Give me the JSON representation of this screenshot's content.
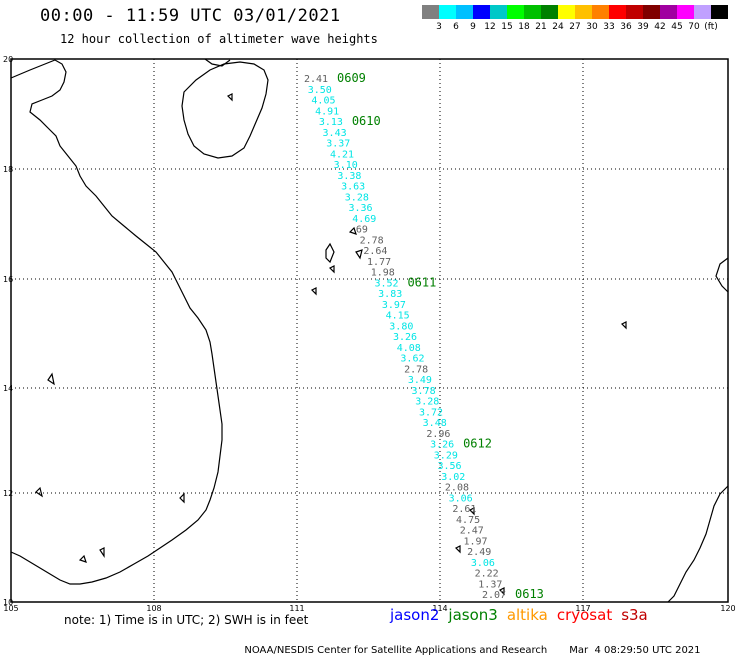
{
  "title": "00:00 - 11:59 UTC 03/01/2021",
  "subtitle": "12 hour collection of altimeter wave heights",
  "legend": {
    "colors": [
      "#808080",
      "#00ffff",
      "#00c0ff",
      "#0000ff",
      "#00c8c8",
      "#00ff00",
      "#00c000",
      "#008000",
      "#ffff00",
      "#ffc000",
      "#ff8000",
      "#ff0000",
      "#c00000",
      "#800000",
      "#a000a0",
      "#ff00ff",
      "#c0a0ff",
      "#000000"
    ],
    "labels": [
      "3",
      "6",
      "9",
      "12",
      "15",
      "18",
      "21",
      "24",
      "27",
      "30",
      "33",
      "36",
      "39",
      "42",
      "45",
      "70",
      "(ft)"
    ]
  },
  "axes": {
    "lat_labels": [
      "20",
      "18",
      "16",
      "14",
      "12",
      "10"
    ],
    "lon_labels": [
      "105",
      "108",
      "111",
      "114",
      "117",
      "120"
    ]
  },
  "track_colors": {
    "cyan": "#00e5e5",
    "gray": "#606060",
    "time": "#008000"
  },
  "points": [
    {
      "v": "2.41",
      "c": "gray"
    },
    {
      "v": "3.50",
      "c": "cyan"
    },
    {
      "v": "4.05",
      "c": "cyan"
    },
    {
      "v": "4.91",
      "c": "cyan"
    },
    {
      "v": "3.13",
      "c": "cyan"
    },
    {
      "v": "3.43",
      "c": "cyan"
    },
    {
      "v": "3.37",
      "c": "cyan"
    },
    {
      "v": "4.21",
      "c": "cyan"
    },
    {
      "v": "3.10",
      "c": "cyan"
    },
    {
      "v": "3.38",
      "c": "cyan"
    },
    {
      "v": "3.63",
      "c": "cyan"
    },
    {
      "v": "3.28",
      "c": "cyan"
    },
    {
      "v": "3.36",
      "c": "cyan"
    },
    {
      "v": "4.69",
      "c": "cyan"
    },
    {
      "v": "69",
      "c": "gray"
    },
    {
      "v": "2.78",
      "c": "gray"
    },
    {
      "v": "2.64",
      "c": "gray"
    },
    {
      "v": "1.77",
      "c": "gray"
    },
    {
      "v": "1.98",
      "c": "gray"
    },
    {
      "v": "3.52",
      "c": "cyan"
    },
    {
      "v": "3.83",
      "c": "cyan"
    },
    {
      "v": "3.97",
      "c": "cyan"
    },
    {
      "v": "4.15",
      "c": "cyan"
    },
    {
      "v": "3.80",
      "c": "cyan"
    },
    {
      "v": "3.26",
      "c": "cyan"
    },
    {
      "v": "4.08",
      "c": "cyan"
    },
    {
      "v": "3.62",
      "c": "cyan"
    },
    {
      "v": "2.78",
      "c": "gray"
    },
    {
      "v": "3.49",
      "c": "cyan"
    },
    {
      "v": "3.78",
      "c": "cyan"
    },
    {
      "v": "3.28",
      "c": "cyan"
    },
    {
      "v": "3.72",
      "c": "cyan"
    },
    {
      "v": "3.48",
      "c": "cyan"
    },
    {
      "v": "2.96",
      "c": "gray"
    },
    {
      "v": "3.26",
      "c": "cyan"
    },
    {
      "v": "3.29",
      "c": "cyan"
    },
    {
      "v": "3.56",
      "c": "cyan"
    },
    {
      "v": "3.02",
      "c": "cyan"
    },
    {
      "v": "2.08",
      "c": "gray"
    },
    {
      "v": "3.06",
      "c": "cyan"
    },
    {
      "v": "2.61",
      "c": "gray"
    },
    {
      "v": "4.75",
      "c": "gray"
    },
    {
      "v": "2.47",
      "c": "gray"
    },
    {
      "v": "1.97",
      "c": "gray"
    },
    {
      "v": "2.49",
      "c": "gray"
    },
    {
      "v": "3.06",
      "c": "cyan"
    },
    {
      "v": "2.22",
      "c": "gray"
    },
    {
      "v": "1.37",
      "c": "gray"
    },
    {
      "v": "2.07",
      "c": "gray"
    }
  ],
  "time_labels": [
    {
      "t": "0609",
      "at": 0
    },
    {
      "t": "0610",
      "at": 4
    },
    {
      "t": "0611",
      "at": 19
    },
    {
      "t": "0612",
      "at": 34
    },
    {
      "t": "0613",
      "at": 48
    }
  ],
  "note": "note: 1) Time is in UTC; 2) SWH is in feet",
  "satellites": [
    {
      "name": "jason2",
      "color": "#0000ff"
    },
    {
      "name": "jason3",
      "color": "#008000"
    },
    {
      "name": "altika",
      "color": "#ff9900"
    },
    {
      "name": "cryosat",
      "color": "#ff0000"
    },
    {
      "name": "s3a",
      "color": "#c00000"
    }
  ],
  "footer": {
    "agency": "NOAA/NESDIS Center for Satellite Applications and Research",
    "timestamp": "Mar  4 08:29:50 UTC 2021"
  }
}
